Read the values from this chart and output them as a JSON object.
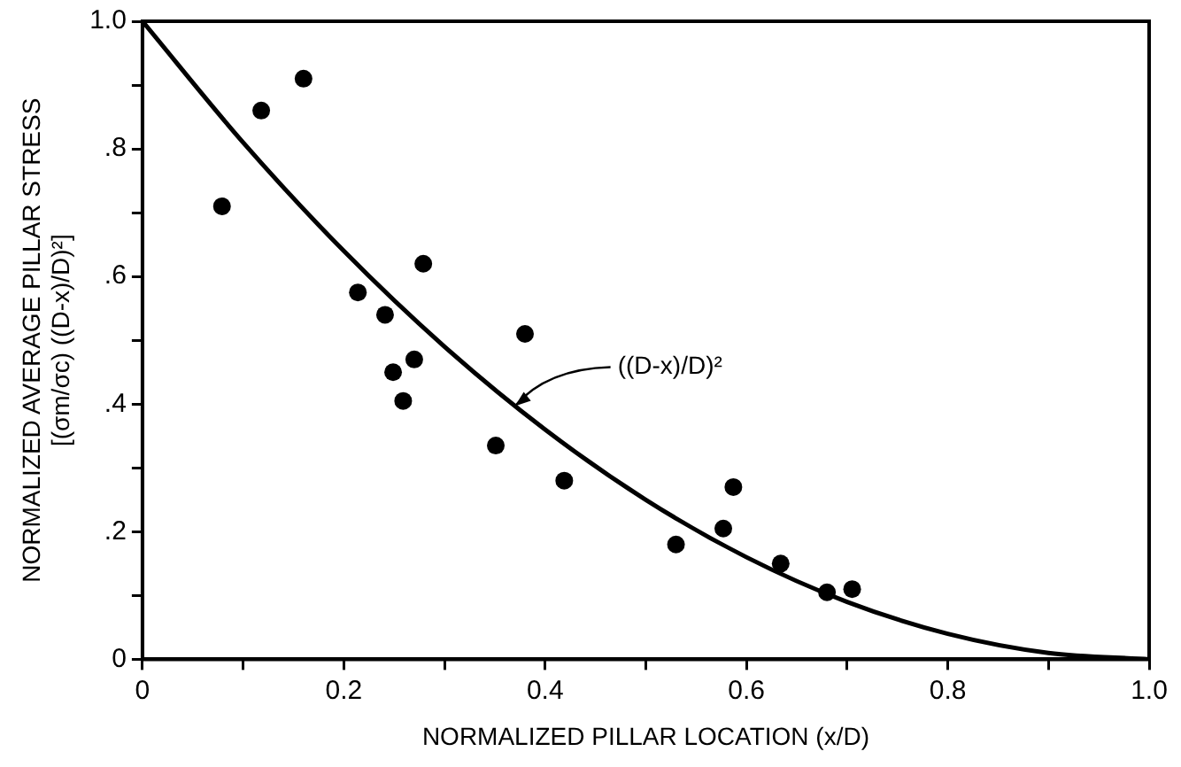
{
  "chart_data": {
    "type": "scatter",
    "xlabel": "NORMALIZED PILLAR LOCATION (x/D)",
    "ylabel": "NORMALIZED AVERAGE PILLAR STRESS\n[(σm/σc) ((D-x)/D)²]",
    "x": [
      0.079,
      0.118,
      0.16,
      0.214,
      0.241,
      0.249,
      0.259,
      0.27,
      0.279,
      0.351,
      0.38,
      0.419,
      0.53,
      0.577,
      0.587,
      0.634,
      0.68,
      0.705
    ],
    "series": [
      {
        "type": "scatter",
        "color": "#000000",
        "values": [
          0.71,
          0.86,
          0.91,
          0.575,
          0.54,
          0.45,
          0.405,
          0.47,
          0.62,
          0.335,
          0.51,
          0.28,
          0.18,
          0.205,
          0.27,
          0.15,
          0.105,
          0.11
        ]
      },
      {
        "type": "line",
        "color": "#000000",
        "marker": "none",
        "x": [
          0,
          0.1,
          0.2,
          0.3,
          0.4,
          0.5,
          0.6,
          0.7,
          0.8,
          0.9,
          1.0
        ],
        "values": [
          1,
          0.81,
          0.64,
          0.49,
          0.36,
          0.25,
          0.16,
          0.09,
          0.04,
          0.01,
          0
        ]
      }
    ],
    "marker": "circle",
    "xlim": [
      0,
      1
    ],
    "ylim": [
      0,
      1
    ],
    "xticks": [
      0,
      {
        "value": 0.1,
        "label": null
      },
      {
        "value": 0.2,
        "label": "0.2"
      },
      {
        "value": 0.3,
        "label": null
      },
      {
        "value": 0.4,
        "label": "0.4"
      },
      {
        "value": 0.5,
        "label": null
      },
      {
        "value": 0.6,
        "label": "0.6"
      },
      {
        "value": 0.7,
        "label": null
      },
      {
        "value": 0.8,
        "label": "0.8"
      },
      {
        "value": 0.9,
        "label": null
      },
      {
        "value": 1,
        "label": "1.0"
      }
    ],
    "yticks": [
      0,
      {
        "value": 0.1,
        "label": null
      },
      {
        "value": 0.2,
        "label": ".2"
      },
      {
        "value": 0.3,
        "label": null
      },
      {
        "value": 0.4,
        "label": ".4"
      },
      {
        "value": 0.5,
        "label": null
      },
      {
        "value": 0.6,
        "label": ".6"
      },
      {
        "value": 0.7,
        "label": null
      },
      {
        "value": 0.8,
        "label": ".8"
      },
      {
        "value": 0.9,
        "label": null
      },
      {
        "value": 1,
        "label": "1.0"
      }
    ],
    "annotations": [
      {
        "text": "((D-x)/D)²",
        "x": 0.37,
        "y": 0.3969
      }
    ],
    "grid": false,
    "legend": false
  }
}
